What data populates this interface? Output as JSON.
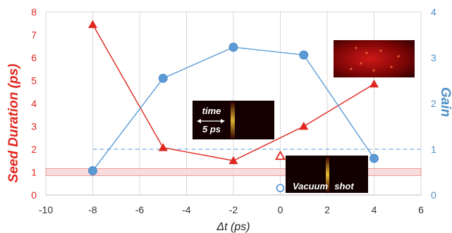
{
  "chart_data": {
    "type": "line",
    "xlabel": "Δt (ps)",
    "ylabel_left": "Seed Duration (ps)",
    "ylabel_right": "Gain",
    "xlim": [
      -10,
      6
    ],
    "xticks": [
      "-10",
      "-8",
      "-6",
      "-4",
      "-2",
      "0",
      "2",
      "4",
      "6"
    ],
    "ylim_left": [
      0,
      8
    ],
    "yticks_left": [
      "0",
      "1",
      "2",
      "3",
      "4",
      "5",
      "6",
      "7",
      "8"
    ],
    "ylim_right": [
      0,
      4
    ],
    "yticks_right": [
      "0",
      "1",
      "2",
      "3",
      "4"
    ],
    "grid": "vertical",
    "series": [
      {
        "axis": "left",
        "marker": "triangle",
        "color": "#e0271f",
        "x": [
          -8,
          -5,
          -2,
          1,
          4
        ],
        "y": [
          7.45,
          2.07,
          1.5,
          3.0,
          4.85
        ]
      },
      {
        "axis": "right",
        "marker": "circle",
        "color": "#5b9bd5",
        "x": [
          -8,
          -5,
          -2,
          1,
          4
        ],
        "y": [
          0.53,
          2.55,
          3.23,
          3.06,
          0.8
        ]
      }
    ],
    "vacuum_shot": {
      "x": 0,
      "seed_duration": 1.7,
      "gain": 0.15
    },
    "reference_band_left": [
      0.85,
      1.15
    ],
    "reference_line_right": 1.0,
    "insets": {
      "streak_time_label": "time",
      "streak_scale_label": "5 ps",
      "vacuum_label_1": "Vacuum",
      "vacuum_label_2": "shot"
    }
  },
  "colors": {
    "red": "#e0271f",
    "blue": "#5b9bd5",
    "band": "#f7d3d3",
    "band_edge": "#e57373",
    "grid": "#d9d9d9"
  }
}
